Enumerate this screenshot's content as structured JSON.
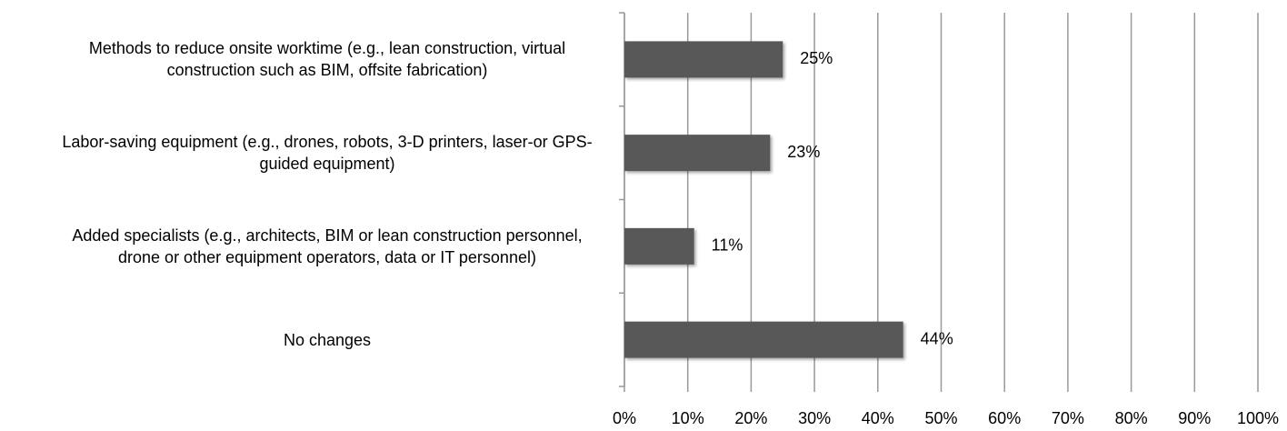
{
  "chart_data": {
    "type": "barh",
    "categories": [
      "Methods to reduce onsite worktime (e.g., lean construction, virtual construction such as BIM, offsite fabrication)",
      "Labor-saving equipment (e.g., drones, robots, 3-D printers, laser-or GPS-guided equipment)",
      "Added specialists (e.g., architects, BIM or lean construction personnel, drone or other equipment operators, data or IT personnel)",
      "No changes"
    ],
    "values": [
      25,
      23,
      11,
      44
    ],
    "value_labels": [
      "25%",
      "23%",
      "11%",
      "44%"
    ],
    "color": "#595959",
    "xlim": [
      0,
      100
    ],
    "xticks": [
      {
        "value": 0,
        "label": "0%"
      },
      {
        "value": 10,
        "label": "10%"
      },
      {
        "value": 20,
        "label": "20%"
      },
      {
        "value": 30,
        "label": "30%"
      },
      {
        "value": 40,
        "label": "40%"
      },
      {
        "value": 50,
        "label": "50%"
      },
      {
        "value": 60,
        "label": "60%"
      },
      {
        "value": 70,
        "label": "70%"
      },
      {
        "value": 80,
        "label": "80%"
      },
      {
        "value": 90,
        "label": "90%"
      },
      {
        "value": 100,
        "label": "100%"
      }
    ],
    "grid": true
  }
}
